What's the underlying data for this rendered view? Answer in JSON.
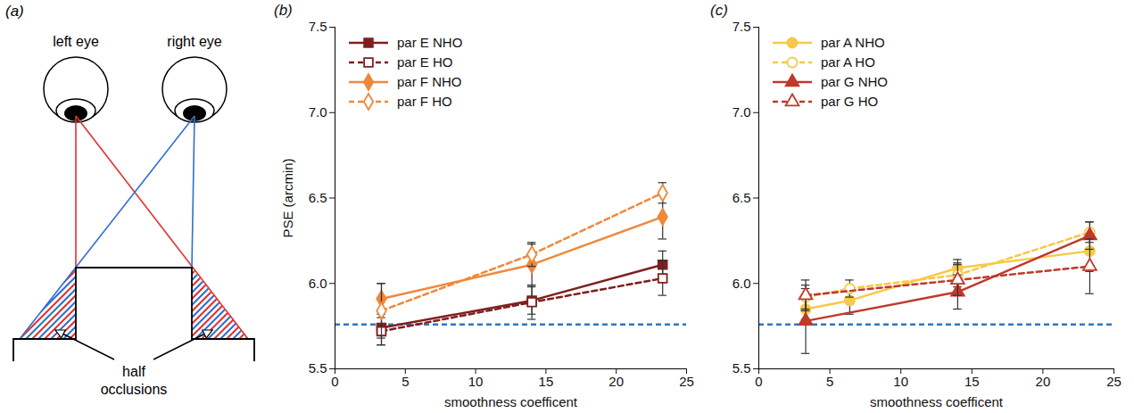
{
  "diagram": {
    "panel": "(a)",
    "left_label": "left eye",
    "right_label": "right eye",
    "occlusion_label": "half occlusions"
  },
  "chart_data": [
    {
      "type": "line",
      "panel": "(b)",
      "xlabel": "smoothness coefficent",
      "ylabel": "PSE (arcmin)",
      "xlim": [
        0,
        25
      ],
      "xticks": [
        0,
        5,
        10,
        15,
        20,
        25
      ],
      "ylim": [
        5.5,
        7.5
      ],
      "yticks": [
        5.5,
        {
          "value": 6,
          "label": "6.0"
        },
        6.5,
        {
          "value": 7,
          "label": "7.0"
        },
        7.5
      ],
      "legend": "upper left",
      "reference": {
        "value": 5.76,
        "color": "#2e78c2",
        "line_style": "dashed"
      },
      "series": [
        {
          "name": "par E NHO",
          "color": "#7f1f1f",
          "marker": "square",
          "line_style": "solid",
          "x": [
            3.3,
            14,
            23.3
          ],
          "values": [
            5.74,
            5.9,
            6.11
          ],
          "errors": [
            0.1,
            0.08,
            0.08
          ]
        },
        {
          "name": "par E HO",
          "color": "#7f1f1f",
          "marker": "square_open",
          "line_style": "dashed",
          "x": [
            3.3,
            14,
            23.3
          ],
          "values": [
            5.72,
            5.89,
            6.03
          ],
          "errors": [
            0.08,
            0.1,
            0.1
          ]
        },
        {
          "name": "par F NHO",
          "color": "#f0883a",
          "marker": "diamond",
          "line_style": "solid",
          "x": [
            3.3,
            14,
            23.3
          ],
          "values": [
            5.91,
            6.11,
            6.39
          ],
          "errors": [
            0.09,
            0.12,
            0.13
          ]
        },
        {
          "name": "par F HO",
          "color": "#f0883a",
          "marker": "diamond_open",
          "line_style": "dashed",
          "x": [
            3.3,
            14,
            23.3
          ],
          "values": [
            5.84,
            6.17,
            6.53
          ],
          "errors": [
            0.16,
            0.07,
            0.06
          ]
        }
      ]
    },
    {
      "type": "line",
      "panel": "(c)",
      "xlabel": "smoothness coefficent",
      "xlim": [
        0,
        25
      ],
      "xticks": [
        0,
        5,
        10,
        15,
        20,
        25
      ],
      "ylim": [
        5.5,
        7.5
      ],
      "yticks": [
        5.5,
        {
          "value": 6,
          "label": "6.0"
        },
        6.5,
        {
          "value": 7,
          "label": "7.0"
        },
        7.5
      ],
      "legend": "upper left",
      "reference": {
        "value": 5.76,
        "color": "#2e78c2",
        "line_style": "dashed"
      },
      "series": [
        {
          "name": "par A NHO",
          "color": "#f7c948",
          "marker": "circle",
          "line_style": "solid",
          "x": [
            3.3,
            6.4,
            14,
            23.3
          ],
          "values": [
            5.85,
            5.9,
            6.09,
            6.19
          ],
          "errors": [
            0.06,
            0.08,
            0.05,
            0.12
          ]
        },
        {
          "name": "par A HO",
          "color": "#f7c948",
          "marker": "circle_open",
          "line_style": "dashed",
          "x": [
            3.3,
            6.4,
            14,
            23.3
          ],
          "values": [
            5.92,
            5.97,
            6.05,
            6.3
          ],
          "errors": [
            0.07,
            0.05,
            0.07,
            0.06
          ]
        },
        {
          "name": "par G NHO",
          "color": "#c0392b",
          "marker": "triangle",
          "line_style": "solid",
          "x": [
            3.3,
            14,
            23.3
          ],
          "values": [
            5.78,
            5.95,
            6.28
          ],
          "errors": [
            0.19,
            0.1,
            0.08
          ]
        },
        {
          "name": "par G HO",
          "color": "#c0392b",
          "marker": "triangle_open",
          "line_style": "dashed",
          "x": [
            3.3,
            14,
            23.3
          ],
          "values": [
            5.93,
            6.02,
            6.1
          ],
          "errors": [
            0.09,
            0.09,
            0.16
          ]
        }
      ]
    }
  ]
}
